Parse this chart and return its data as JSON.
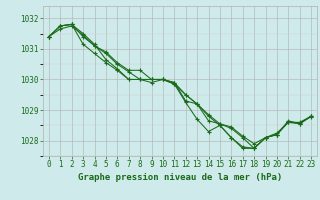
{
  "title": "Graphe pression niveau de la mer (hPa)",
  "bg_color": "#ceeaea",
  "grid_color_major": "#b0b0b0",
  "grid_color_minor": "#d0d0d0",
  "line_color": "#1a6b1a",
  "marker": "+",
  "xlim": [
    -0.5,
    23.5
  ],
  "ylim": [
    1027.5,
    1032.4
  ],
  "yticks": [
    1028,
    1029,
    1030,
    1031,
    1032
  ],
  "xticks": [
    0,
    1,
    2,
    3,
    4,
    5,
    6,
    7,
    8,
    9,
    10,
    11,
    12,
    13,
    14,
    15,
    16,
    17,
    18,
    19,
    20,
    21,
    22,
    23
  ],
  "series": [
    [
      1031.4,
      1031.75,
      1031.8,
      1031.5,
      1031.15,
      1030.65,
      1030.35,
      1030.0,
      1030.0,
      1030.0,
      1030.0,
      1029.9,
      1029.3,
      1029.2,
      1028.8,
      1028.5,
      1028.1,
      1027.8,
      1027.75,
      1028.1,
      1028.25,
      1028.6,
      1028.6,
      1028.8
    ],
    [
      1031.4,
      1031.75,
      1031.8,
      1031.4,
      1031.1,
      1030.9,
      1030.55,
      1030.3,
      1030.3,
      1030.0,
      1030.0,
      1029.9,
      1029.5,
      1029.2,
      1028.85,
      1028.55,
      1028.45,
      1028.15,
      1027.9,
      1028.1,
      1028.2,
      1028.62,
      1028.58,
      1028.78
    ],
    [
      1031.4,
      1031.75,
      1031.8,
      1031.15,
      1030.85,
      1030.55,
      1030.3,
      1030.0,
      1030.0,
      1030.0,
      1030.0,
      1029.85,
      1029.25,
      1028.7,
      1028.3,
      1028.5,
      1028.1,
      1027.75,
      1027.75,
      1028.1,
      1028.2,
      1028.65,
      1028.55,
      1028.8
    ],
    [
      1031.4,
      1031.65,
      1031.75,
      1031.45,
      1031.1,
      1030.85,
      1030.5,
      1030.25,
      1030.0,
      1029.9,
      1030.0,
      1029.85,
      1029.5,
      1029.2,
      1028.65,
      1028.55,
      1028.4,
      1028.1,
      1027.75,
      1028.1,
      1028.2,
      1028.6,
      1028.55,
      1028.8
    ]
  ],
  "tick_fontsize": 5.5,
  "xlabel_fontsize": 6.5
}
